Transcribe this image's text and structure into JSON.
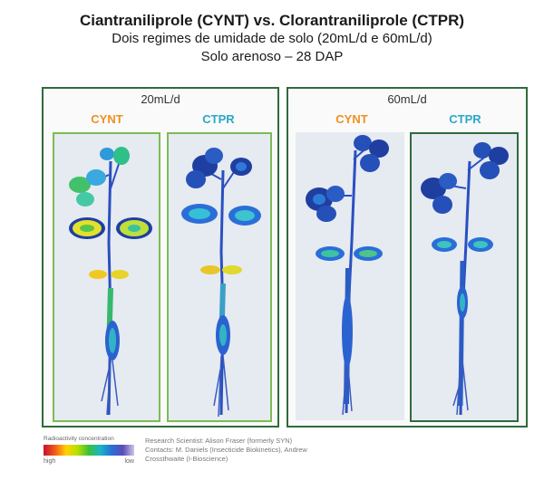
{
  "title": "Ciantraniliprole (CYNT) vs. Clorantraniliprole (CTPR)",
  "subtitle_line1": "Dois regimes de umidade de solo (20mL/d e 60mL/d)",
  "subtitle_line2": "Solo arenoso – 28 DAP",
  "groups": [
    {
      "label": "20mL/d",
      "samples": [
        {
          "label": "CYNT"
        },
        {
          "label": "CTPR"
        }
      ]
    },
    {
      "label": "60mL/d",
      "samples": [
        {
          "label": "CYNT"
        },
        {
          "label": "CTPR"
        }
      ]
    }
  ],
  "legend": {
    "title": "Radioactivity concentration",
    "high": "high",
    "low": "low"
  },
  "credits": {
    "line1": "Research Scientist: Alison Fraser (formerly SYN)",
    "line2": "Contacts: M. Daniels (Insecticide Biokinetics), Andrew",
    "line3": "Crossthwaite (I-Bioscience)"
  },
  "colors": {
    "label_cynt": "#f0901e",
    "label_ctpr": "#2aa8c8",
    "frame_dark": "#2f6b3c",
    "frame_light": "#7dbb54"
  }
}
